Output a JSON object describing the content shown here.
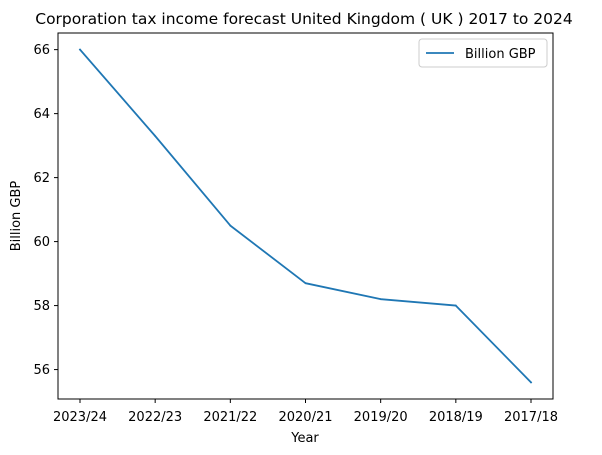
{
  "chart_data": {
    "type": "line",
    "title": "Corporation tax income forecast United Kingdom ( UK ) 2017 to 2024",
    "xlabel": "Year",
    "ylabel": "Billion GBP",
    "categories": [
      "2023/24",
      "2022/23",
      "2021/22",
      "2020/21",
      "2019/20",
      "2018/19",
      "2017/18"
    ],
    "series": [
      {
        "name": "Billion GBP",
        "color": "#1f77b4",
        "values": [
          66.0,
          63.3,
          60.5,
          58.7,
          58.2,
          58.0,
          55.6
        ]
      }
    ],
    "ylim": [
      55.08,
      66.52
    ],
    "yticks": [
      56,
      58,
      60,
      62,
      64,
      66
    ],
    "legend": "top-right",
    "grid": false
  }
}
